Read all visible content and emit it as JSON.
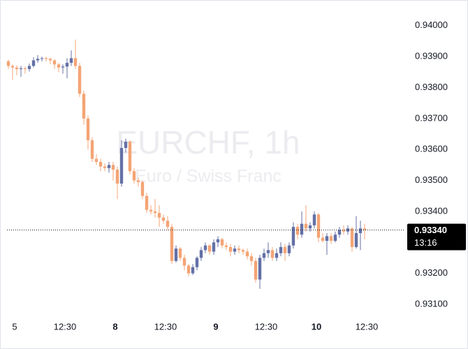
{
  "chart_data": {
    "type": "candlestick",
    "watermark_title": "EURCHF, 1h",
    "watermark_subtitle": "Euro / Swiss Franc",
    "up_color": "#6470a6",
    "down_color": "#f4a475",
    "ylim": [
      0.93057,
      0.94083
    ],
    "yticks": [
      {
        "value": 0.94,
        "label": "0.94000"
      },
      {
        "value": 0.939,
        "label": "0.93900"
      },
      {
        "value": 0.938,
        "label": "0.93800"
      },
      {
        "value": 0.937,
        "label": "0.93700"
      },
      {
        "value": 0.936,
        "label": "0.93600"
      },
      {
        "value": 0.935,
        "label": "0.93500"
      },
      {
        "value": 0.934,
        "label": "0.93400"
      },
      {
        "value": 0.932,
        "label": "0.93200"
      },
      {
        "value": 0.931,
        "label": "0.93100"
      }
    ],
    "xlim": [
      -2,
      94.67
    ],
    "xticks": [
      {
        "value": 1.5,
        "label": "5"
      },
      {
        "value": 13.5,
        "label": "12:30"
      },
      {
        "value": 25.5,
        "label": "8"
      },
      {
        "value": 37.5,
        "label": "12:30"
      },
      {
        "value": 49.5,
        "label": "9"
      },
      {
        "value": 61.5,
        "label": "12:30"
      },
      {
        "value": 73.5,
        "label": "10"
      },
      {
        "value": 85.5,
        "label": "12:30"
      }
    ],
    "last_price": {
      "value": 0.9334,
      "label": "0.93340"
    },
    "countdown": "13:16",
    "candles": [
      [
        0.93885,
        0.9389,
        0.9386,
        0.9387
      ],
      [
        0.9387,
        0.93875,
        0.93825,
        0.93865
      ],
      [
        0.93865,
        0.93872,
        0.9384,
        0.9386
      ],
      [
        0.9386,
        0.9387,
        0.93835,
        0.93862
      ],
      [
        0.93862,
        0.93868,
        0.93845,
        0.9386
      ],
      [
        0.9386,
        0.93878,
        0.93852,
        0.9387
      ],
      [
        0.9387,
        0.93898,
        0.93865,
        0.93888
      ],
      [
        0.93888,
        0.93905,
        0.9388,
        0.93893
      ],
      [
        0.93893,
        0.939,
        0.93885,
        0.93895
      ],
      [
        0.93895,
        0.939,
        0.93885,
        0.93893
      ],
      [
        0.93893,
        0.93897,
        0.93875,
        0.93888
      ],
      [
        0.93888,
        0.93892,
        0.9386,
        0.93875
      ],
      [
        0.93875,
        0.9388,
        0.9385,
        0.93865
      ],
      [
        0.93865,
        0.93875,
        0.93845,
        0.93868
      ],
      [
        0.93868,
        0.93895,
        0.9383,
        0.9388
      ],
      [
        0.9388,
        0.9392,
        0.9387,
        0.93895
      ],
      [
        0.93895,
        0.93955,
        0.9386,
        0.9387
      ],
      [
        0.9387,
        0.9388,
        0.9377,
        0.9378
      ],
      [
        0.9378,
        0.9379,
        0.9368,
        0.937
      ],
      [
        0.937,
        0.9371,
        0.936,
        0.9363
      ],
      [
        0.9363,
        0.9364,
        0.9356,
        0.9357
      ],
      [
        0.9357,
        0.93585,
        0.9355,
        0.9356
      ],
      [
        0.9356,
        0.9357,
        0.9353,
        0.93545
      ],
      [
        0.93545,
        0.93555,
        0.9353,
        0.9354
      ],
      [
        0.9354,
        0.9356,
        0.93525,
        0.9355
      ],
      [
        0.9355,
        0.9356,
        0.935,
        0.93535
      ],
      [
        0.93535,
        0.93545,
        0.9344,
        0.9349
      ],
      [
        0.9349,
        0.9363,
        0.9348,
        0.93605
      ],
      [
        0.93605,
        0.93635,
        0.9359,
        0.93625
      ],
      [
        0.93625,
        0.9363,
        0.9352,
        0.9353
      ],
      [
        0.9353,
        0.9354,
        0.9349,
        0.935
      ],
      [
        0.935,
        0.9351,
        0.9348,
        0.93495
      ],
      [
        0.93495,
        0.935,
        0.9344,
        0.9345
      ],
      [
        0.9345,
        0.9346,
        0.93395,
        0.93405
      ],
      [
        0.93405,
        0.9342,
        0.9339,
        0.934
      ],
      [
        0.934,
        0.9344,
        0.9338,
        0.93395
      ],
      [
        0.93395,
        0.9342,
        0.9335,
        0.9338
      ],
      [
        0.9338,
        0.9339,
        0.9336,
        0.9337
      ],
      [
        0.9337,
        0.93385,
        0.9334,
        0.9335
      ],
      [
        0.9335,
        0.9336,
        0.9323,
        0.9324
      ],
      [
        0.9324,
        0.9329,
        0.93235,
        0.9328
      ],
      [
        0.9328,
        0.93285,
        0.9324,
        0.9325
      ],
      [
        0.9325,
        0.9326,
        0.9321,
        0.93225
      ],
      [
        0.93225,
        0.9323,
        0.9319,
        0.932
      ],
      [
        0.932,
        0.9323,
        0.93195,
        0.9322
      ],
      [
        0.9322,
        0.93255,
        0.9321,
        0.9325
      ],
      [
        0.9325,
        0.93285,
        0.9324,
        0.93275
      ],
      [
        0.93275,
        0.933,
        0.93265,
        0.9329
      ],
      [
        0.9329,
        0.93295,
        0.9326,
        0.9327
      ],
      [
        0.9327,
        0.9331,
        0.9326,
        0.933
      ],
      [
        0.933,
        0.9332,
        0.93285,
        0.9331
      ],
      [
        0.9331,
        0.93315,
        0.9328,
        0.9329
      ],
      [
        0.9329,
        0.933,
        0.93275,
        0.93285
      ],
      [
        0.93285,
        0.93295,
        0.93255,
        0.9327
      ],
      [
        0.9327,
        0.9329,
        0.9326,
        0.9328
      ],
      [
        0.9328,
        0.9329,
        0.93265,
        0.93275
      ],
      [
        0.93275,
        0.9328,
        0.9326,
        0.9327
      ],
      [
        0.9327,
        0.9328,
        0.93245,
        0.93255
      ],
      [
        0.93255,
        0.93265,
        0.93225,
        0.9324
      ],
      [
        0.9324,
        0.9325,
        0.9317,
        0.9318
      ],
      [
        0.9318,
        0.9326,
        0.9315,
        0.9325
      ],
      [
        0.9325,
        0.9328,
        0.9324,
        0.93265
      ],
      [
        0.93265,
        0.933,
        0.9325,
        0.93275
      ],
      [
        0.93275,
        0.93285,
        0.9324,
        0.9325
      ],
      [
        0.9325,
        0.9328,
        0.9324,
        0.93265
      ],
      [
        0.93265,
        0.933,
        0.93255,
        0.93285
      ],
      [
        0.93285,
        0.93295,
        0.9324,
        0.93265
      ],
      [
        0.93265,
        0.933,
        0.93255,
        0.9329
      ],
      [
        0.9329,
        0.93365,
        0.9328,
        0.9335
      ],
      [
        0.9335,
        0.9336,
        0.9331,
        0.93325
      ],
      [
        0.93325,
        0.934,
        0.93315,
        0.9336
      ],
      [
        0.9336,
        0.9342,
        0.93335,
        0.93345
      ],
      [
        0.93345,
        0.93365,
        0.93335,
        0.93355
      ],
      [
        0.93355,
        0.934,
        0.93345,
        0.9339
      ],
      [
        0.9339,
        0.93395,
        0.933,
        0.93315
      ],
      [
        0.93315,
        0.9333,
        0.933,
        0.93305
      ],
      [
        0.93305,
        0.9333,
        0.9326,
        0.9332
      ],
      [
        0.9332,
        0.9333,
        0.93295,
        0.93305
      ],
      [
        0.93305,
        0.93335,
        0.933,
        0.93325
      ],
      [
        0.93325,
        0.9335,
        0.93315,
        0.9334
      ],
      [
        0.9334,
        0.93355,
        0.93325,
        0.93335
      ],
      [
        0.93335,
        0.93355,
        0.93325,
        0.93345
      ],
      [
        0.93345,
        0.9335,
        0.9327,
        0.93285
      ],
      [
        0.93285,
        0.93385,
        0.9328,
        0.9333
      ],
      [
        0.9333,
        0.9337,
        0.93275,
        0.93345
      ],
      [
        0.93345,
        0.9336,
        0.9331,
        0.9334
      ]
    ]
  }
}
